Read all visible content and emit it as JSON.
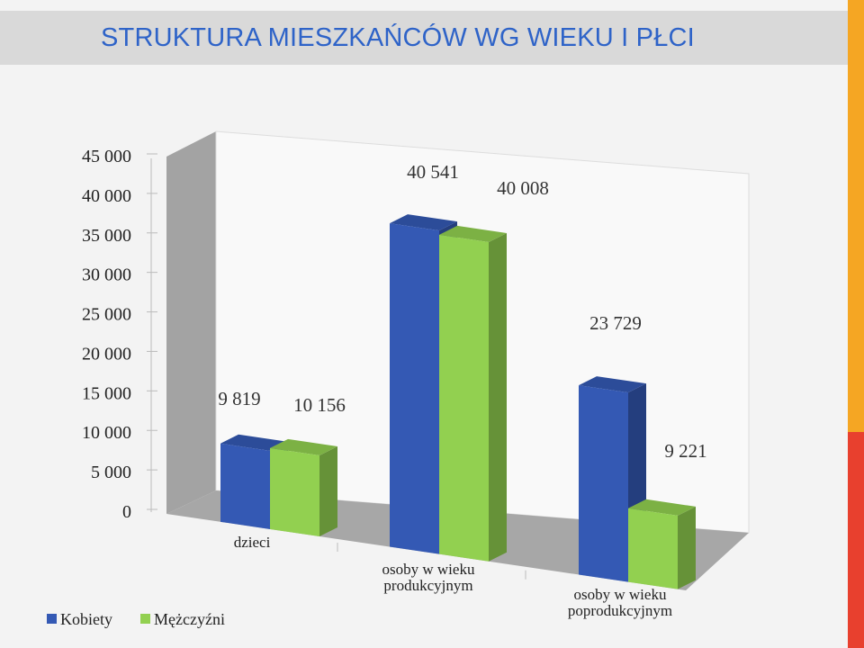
{
  "slide": {
    "title": "STRUKTURA MIESZKAŃCÓW WG WIEKU I PŁCI",
    "stripe_colors": [
      "#f5a623",
      "#e8402e"
    ]
  },
  "chart_data": {
    "type": "bar",
    "title": "",
    "categories": [
      "dzieci",
      "osoby w wieku produkcyjnym",
      "osoby w wieku poprodukcyjnym"
    ],
    "category_lines": [
      [
        "dzieci"
      ],
      [
        "osoby w wieku",
        "produkcyjnym"
      ],
      [
        "osoby w wieku",
        "poprodukcyjnym"
      ]
    ],
    "series": [
      {
        "name": "Kobiety",
        "values": [
          9819,
          40541,
          23729
        ],
        "labels": [
          "9 819",
          "40 541",
          "23 729"
        ],
        "color": "#3459b4"
      },
      {
        "name": "Mężczyźni",
        "values": [
          10156,
          40008,
          9221
        ],
        "labels": [
          "10 156",
          "40 008",
          "9 221"
        ],
        "color": "#92d050"
      }
    ],
    "ylim": [
      0,
      45000
    ],
    "yticks": [
      0,
      5000,
      10000,
      15000,
      20000,
      25000,
      30000,
      35000,
      40000,
      45000
    ],
    "ytick_labels": [
      "0",
      "5 000",
      "10 000",
      "15 000",
      "20 000",
      "25 000",
      "30 000",
      "35 000",
      "40 000",
      "45 000"
    ],
    "grid": false,
    "legend_position": "bottom-left",
    "style": "3d-clustered-column"
  }
}
